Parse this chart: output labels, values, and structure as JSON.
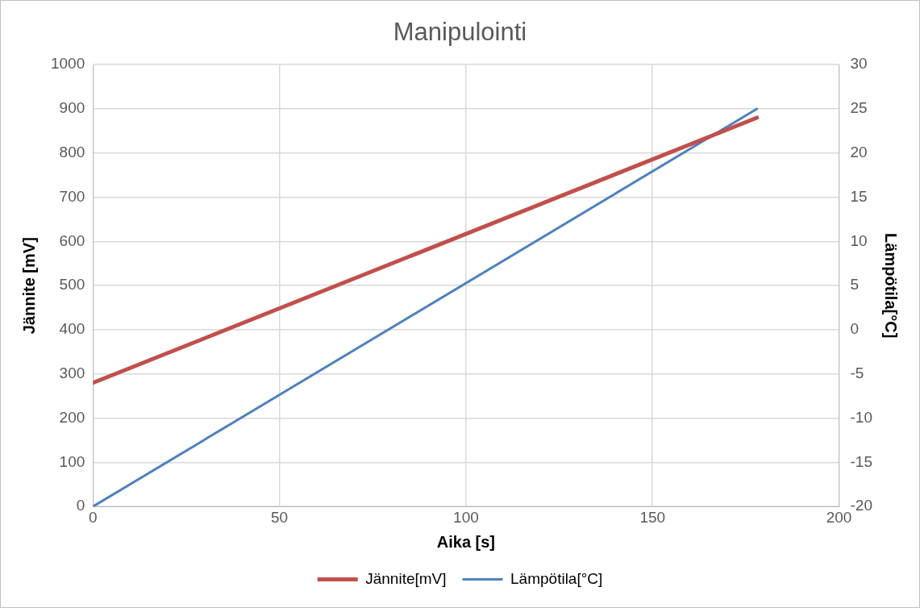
{
  "chart_data": {
    "type": "line",
    "title": "Manipulointi",
    "xlabel": "Aika [s]",
    "ylabel": "Jännite [mV]",
    "y2label": "Lämpötila[°C]",
    "x": [
      0,
      178
    ],
    "series": [
      {
        "name": "Jännite[mV]",
        "color": "#c0504d",
        "values": [
          280,
          880
        ]
      },
      {
        "name": "Lämpötila[°C]",
        "color": "#4f81bd",
        "values": [
          -20,
          25
        ],
        "axis": "y2"
      }
    ],
    "xlim": [
      0,
      200
    ],
    "xticks": [
      0,
      50,
      100,
      150,
      200
    ],
    "ylim": [
      0,
      1000
    ],
    "yticks": [
      0,
      100,
      200,
      300,
      400,
      500,
      600,
      700,
      800,
      900,
      1000
    ],
    "y2lim": [
      -20,
      30
    ],
    "y2ticks": [
      -20,
      -15,
      -10,
      -5,
      0,
      5,
      10,
      15,
      20,
      25,
      30
    ],
    "grid": true,
    "legend": "bottom",
    "marker": "none",
    "line_style": "solid"
  }
}
